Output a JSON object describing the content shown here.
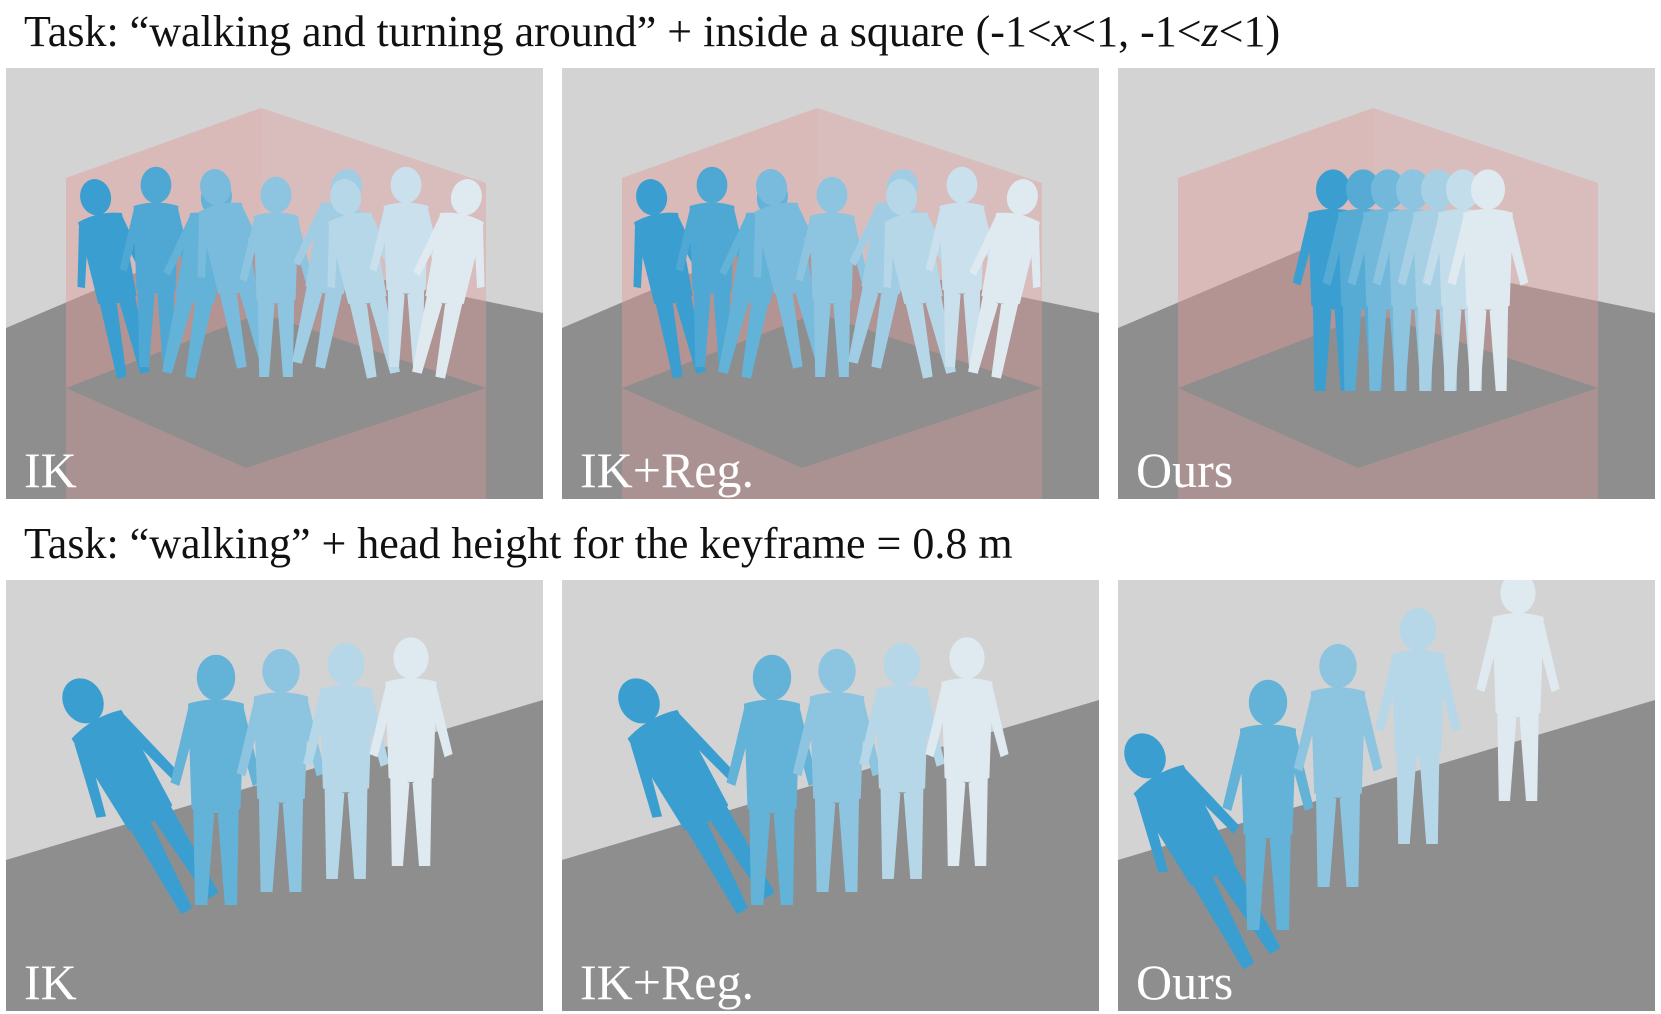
{
  "figure": {
    "row1": {
      "task_prefix": "Task: “walking and turning around” + inside a square (-1<",
      "var_x": "x",
      "task_mid": "<1, -1<",
      "var_z": "z",
      "task_suffix": "<1)",
      "panels": [
        {
          "label": "IK"
        },
        {
          "label": "IK+Reg."
        },
        {
          "label": "Ours"
        }
      ]
    },
    "row2": {
      "task": "Task: “walking” + head height for the keyframe = 0.8 m",
      "panels": [
        {
          "label": "IK"
        },
        {
          "label": "IK+Reg."
        },
        {
          "label": "Ours"
        }
      ]
    }
  },
  "colors": {
    "background": "#d3d3d3",
    "floor": "#8e8e8e",
    "constraint_box": "#e39a9a",
    "figure_dark": "#3a9fd0",
    "figure_light": "#dfe9f0"
  }
}
